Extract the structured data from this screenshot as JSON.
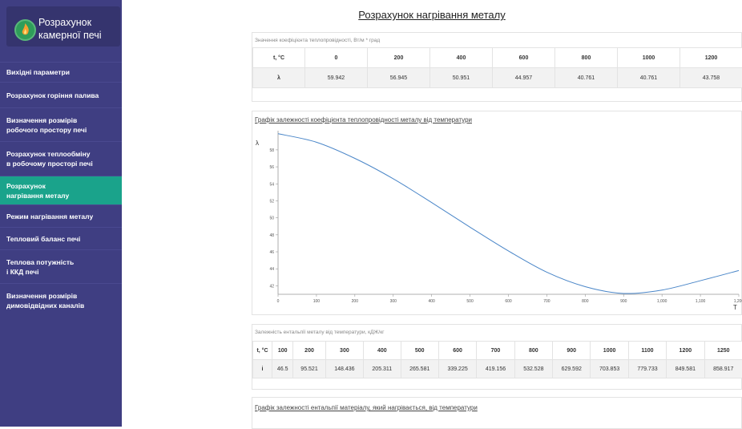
{
  "app": {
    "title_line1": "Розрахунок",
    "title_line2": "камерної печі"
  },
  "nav": [
    {
      "label1": "Вихідні параметри",
      "label2": ""
    },
    {
      "label1": "Розрахунок горіння палива",
      "label2": ""
    },
    {
      "label1": "Визначення розмірів",
      "label2": "робочого простору печі"
    },
    {
      "label1": "Розрахунок теплообміну",
      "label2": "в робочому просторі печі"
    },
    {
      "label1": "Розрахунок",
      "label2": "нагрівання металу"
    },
    {
      "label1": "Режим нагрівання металу",
      "label2": ""
    },
    {
      "label1": "Тепловий баланс печі",
      "label2": ""
    },
    {
      "label1": "Теплова потужність",
      "label2": "і ККД печі"
    },
    {
      "label1": "Визначення розмірів",
      "label2": "димовідвідних каналів"
    }
  ],
  "active_nav_index": 4,
  "page": {
    "title": "Розрахунок нагрівання металу"
  },
  "table1": {
    "caption": "Значення коефіцієнта теплопровідності, Вт/м * град",
    "header_label": "t, °C",
    "headers": [
      "0",
      "200",
      "400",
      "600",
      "800",
      "1000",
      "1200"
    ],
    "row_label": "λ",
    "values": [
      "59.942",
      "56.945",
      "50.951",
      "44.957",
      "40.761",
      "40.761",
      "43.758"
    ]
  },
  "chart1": {
    "title": "Графік залежності коефіцієнта теплопровідності металу від температури"
  },
  "chart_data": {
    "type": "line",
    "ylabel": "λ",
    "xlabel": "T",
    "xlim": [
      0,
      1200
    ],
    "ylim": [
      41,
      59.5
    ],
    "x_ticks": [
      "0",
      "100",
      "200",
      "300",
      "400",
      "500",
      "600",
      "700",
      "800",
      "900",
      "1,000",
      "1,100",
      "1,200"
    ],
    "y_ticks": [
      "42",
      "44",
      "46",
      "48",
      "50",
      "52",
      "54",
      "56",
      "58"
    ],
    "x": [
      0,
      100,
      200,
      300,
      400,
      500,
      600,
      700,
      800,
      900,
      1000,
      1100,
      1200
    ],
    "series": [
      {
        "values": [
          59.9,
          58.9,
          57.0,
          54.6,
          51.8,
          48.9,
          46.1,
          43.6,
          41.9,
          41.1,
          41.5,
          42.6,
          43.8
        ]
      }
    ],
    "line_color": "#4a86c8"
  },
  "table2": {
    "caption": "Залежність ентальпії металу від температури, кДЖ/кг",
    "header_label": "t, °C",
    "headers": [
      "100",
      "200",
      "300",
      "400",
      "500",
      "600",
      "700",
      "800",
      "900",
      "1000",
      "1100",
      "1200",
      "1250"
    ],
    "row_label": "i",
    "values": [
      "46.5",
      "95.521",
      "148.436",
      "205.311",
      "265.581",
      "339.225",
      "419.156",
      "532.528",
      "629.592",
      "703.853",
      "779.733",
      "849.581",
      "858.917"
    ]
  },
  "chart2": {
    "title": "Графік залежності ентальпії матеріалу, який нагрівається, від температури"
  }
}
